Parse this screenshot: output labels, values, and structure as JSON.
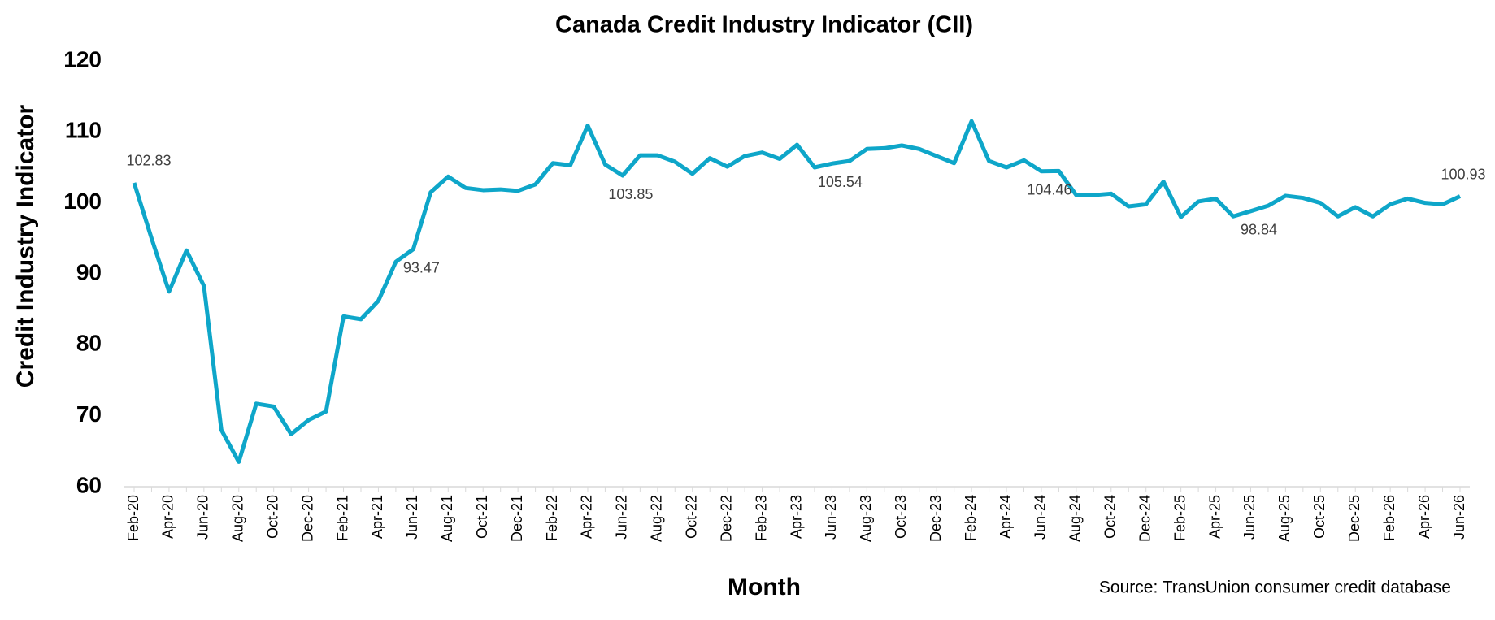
{
  "chart_data": {
    "type": "line",
    "title": "Canada Credit Industry Indicator (CII)",
    "y_label": "Credit Industry Indicator",
    "x_label": "Month",
    "source": "Source: TransUnion consumer credit database",
    "categories": [
      "Feb-20",
      null,
      "Apr-20",
      null,
      "Jun-20",
      null,
      "Aug-20",
      null,
      "Oct-20",
      null,
      "Dec-20",
      null,
      "Feb-21",
      null,
      "Apr-21",
      null,
      "Jun-21",
      null,
      "Aug-21",
      null,
      "Oct-21",
      null,
      "Dec-21",
      null,
      "Feb-22",
      null,
      "Apr-22",
      null,
      "Jun-22",
      null,
      "Aug-22",
      null,
      "Oct-22",
      null,
      "Dec-22",
      null,
      "Feb-23",
      null,
      "Apr-23",
      null,
      "Jun-23",
      null,
      "Aug-23",
      null,
      "Oct-23",
      null,
      "Dec-23",
      null,
      "Feb-24",
      null,
      "Apr-24",
      null,
      "Jun-24",
      null,
      "Aug-24",
      null,
      "Oct-24",
      null,
      "Dec-24",
      null,
      "Feb-25",
      null,
      "Apr-25",
      null,
      "Jun-25",
      null,
      "Aug-25",
      null,
      "Oct-25",
      null,
      "Dec-25",
      null,
      "Feb-26",
      null,
      "Apr-26",
      null,
      "Jun-26"
    ],
    "values": [
      102.83,
      95,
      87.5,
      93.3,
      88.3,
      68,
      63.5,
      71.7,
      71.3,
      67.4,
      69.4,
      70.6,
      84,
      83.6,
      86.2,
      91.7,
      93.47,
      101.5,
      103.7,
      102.1,
      101.8,
      101.9,
      101.7,
      102.6,
      105.6,
      105.3,
      110.9,
      105.4,
      103.85,
      106.7,
      106.7,
      105.8,
      104.1,
      106.3,
      105.1,
      106.6,
      107.1,
      106.2,
      108.2,
      105,
      105.54,
      105.9,
      107.6,
      107.7,
      108.1,
      107.6,
      106.6,
      105.6,
      111.5,
      105.9,
      105,
      106,
      104.46,
      104.5,
      101.1,
      101.1,
      101.3,
      99.5,
      99.8,
      103,
      98,
      100.2,
      100.6,
      98.1,
      98.84,
      99.6,
      101,
      100.7,
      100,
      98.1,
      99.4,
      98.1,
      99.8,
      100.6,
      100,
      99.8,
      100.93
    ],
    "value_labels": [
      "102.83",
      null,
      null,
      null,
      null,
      null,
      null,
      null,
      null,
      null,
      null,
      null,
      null,
      null,
      null,
      null,
      "93.47",
      null,
      null,
      null,
      null,
      null,
      null,
      null,
      null,
      null,
      null,
      null,
      "103.85",
      null,
      null,
      null,
      null,
      null,
      null,
      null,
      null,
      null,
      null,
      null,
      "105.54",
      null,
      null,
      null,
      null,
      null,
      null,
      null,
      null,
      null,
      null,
      null,
      "104.46",
      null,
      null,
      null,
      null,
      null,
      null,
      null,
      null,
      null,
      null,
      null,
      "98.84",
      null,
      null,
      null,
      null,
      null,
      null,
      null,
      null,
      null,
      null,
      null,
      "100.93"
    ],
    "color": "#0ea6c9",
    "ylim": [
      60,
      120
    ],
    "yticks": [
      60,
      70,
      80,
      90,
      100,
      110,
      120
    ],
    "grid": false
  }
}
